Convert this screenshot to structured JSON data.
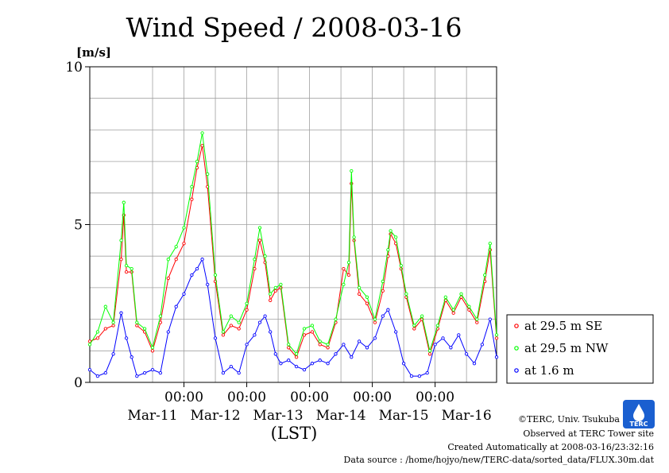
{
  "chart_data": {
    "type": "line",
    "title": "Wind Speed / 2008-03-16",
    "ylabel": "[m/s]",
    "xlabel": "(LST)",
    "ylim": [
      0,
      10
    ],
    "yticks": [
      "0",
      "5",
      "10"
    ],
    "xlim": [
      "2008-03-10 12:00",
      "2008-03-16 23:30"
    ],
    "x_time_ticks": [
      {
        "label": "00:00",
        "x": "2008-03-12 00:00"
      },
      {
        "label": "00:00",
        "x": "2008-03-13 00:00"
      },
      {
        "label": "00:00",
        "x": "2008-03-14 00:00"
      },
      {
        "label": "00:00",
        "x": "2008-03-15 00:00"
      },
      {
        "label": "00:00",
        "x": "2008-03-16 00:00"
      }
    ],
    "x_date_labels": [
      {
        "label": "Mar-11",
        "x": "2008-03-11 12:00"
      },
      {
        "label": "Mar-12",
        "x": "2008-03-12 12:00"
      },
      {
        "label": "Mar-13",
        "x": "2008-03-13 12:00"
      },
      {
        "label": "Mar-14",
        "x": "2008-03-14 12:00"
      },
      {
        "label": "Mar-15",
        "x": "2008-03-15 12:00"
      },
      {
        "label": "Mar-16",
        "x": "2008-03-16 12:00"
      }
    ],
    "grid": true,
    "legend_position": "right",
    "series": [
      {
        "name": "at 29.5 m SE",
        "color": "#ff0000",
        "points": [
          [
            "2008-03-10 12:00",
            1.3
          ],
          [
            "2008-03-10 15:00",
            1.4
          ],
          [
            "2008-03-10 18:00",
            1.7
          ],
          [
            "2008-03-10 21:00",
            1.8
          ],
          [
            "2008-03-11 00:00",
            3.9
          ],
          [
            "2008-03-11 01:00",
            5.3
          ],
          [
            "2008-03-11 02:00",
            3.5
          ],
          [
            "2008-03-11 04:00",
            3.5
          ],
          [
            "2008-03-11 06:00",
            1.8
          ],
          [
            "2008-03-11 09:00",
            1.6
          ],
          [
            "2008-03-11 12:00",
            1.0
          ],
          [
            "2008-03-11 15:00",
            1.9
          ],
          [
            "2008-03-11 18:00",
            3.3
          ],
          [
            "2008-03-11 21:00",
            3.9
          ],
          [
            "2008-03-12 00:00",
            4.4
          ],
          [
            "2008-03-12 03:00",
            5.8
          ],
          [
            "2008-03-12 05:00",
            6.8
          ],
          [
            "2008-03-12 07:00",
            7.5
          ],
          [
            "2008-03-12 09:00",
            6.2
          ],
          [
            "2008-03-12 12:00",
            3.2
          ],
          [
            "2008-03-12 15:00",
            1.5
          ],
          [
            "2008-03-12 18:00",
            1.8
          ],
          [
            "2008-03-12 21:00",
            1.7
          ],
          [
            "2008-03-13 00:00",
            2.3
          ],
          [
            "2008-03-13 03:00",
            3.6
          ],
          [
            "2008-03-13 05:00",
            4.5
          ],
          [
            "2008-03-13 07:00",
            3.8
          ],
          [
            "2008-03-13 09:00",
            2.6
          ],
          [
            "2008-03-13 11:00",
            2.9
          ],
          [
            "2008-03-13 13:00",
            3.0
          ],
          [
            "2008-03-13 16:00",
            1.1
          ],
          [
            "2008-03-13 19:00",
            0.8
          ],
          [
            "2008-03-13 22:00",
            1.5
          ],
          [
            "2008-03-14 01:00",
            1.6
          ],
          [
            "2008-03-14 04:00",
            1.2
          ],
          [
            "2008-03-14 07:00",
            1.1
          ],
          [
            "2008-03-14 10:00",
            1.9
          ],
          [
            "2008-03-14 13:00",
            3.6
          ],
          [
            "2008-03-14 15:00",
            3.4
          ],
          [
            "2008-03-14 16:00",
            6.3
          ],
          [
            "2008-03-14 17:00",
            4.5
          ],
          [
            "2008-03-14 19:00",
            2.8
          ],
          [
            "2008-03-14 22:00",
            2.5
          ],
          [
            "2008-03-15 01:00",
            1.9
          ],
          [
            "2008-03-15 04:00",
            2.9
          ],
          [
            "2008-03-15 06:00",
            4.0
          ],
          [
            "2008-03-15 07:00",
            4.7
          ],
          [
            "2008-03-15 09:00",
            4.4
          ],
          [
            "2008-03-15 11:00",
            3.6
          ],
          [
            "2008-03-15 13:00",
            2.7
          ],
          [
            "2008-03-15 16:00",
            1.7
          ],
          [
            "2008-03-15 19:00",
            2.0
          ],
          [
            "2008-03-15 22:00",
            0.9
          ],
          [
            "2008-03-16 01:00",
            1.7
          ],
          [
            "2008-03-16 04:00",
            2.6
          ],
          [
            "2008-03-16 07:00",
            2.2
          ],
          [
            "2008-03-16 10:00",
            2.7
          ],
          [
            "2008-03-16 13:00",
            2.3
          ],
          [
            "2008-03-16 16:00",
            1.9
          ],
          [
            "2008-03-16 19:00",
            3.2
          ],
          [
            "2008-03-16 21:00",
            4.2
          ],
          [
            "2008-03-16 23:30",
            1.4
          ]
        ]
      },
      {
        "name": "at 29.5 m NW",
        "color": "#00ff00",
        "points": [
          [
            "2008-03-10 12:00",
            1.2
          ],
          [
            "2008-03-10 15:00",
            1.6
          ],
          [
            "2008-03-10 18:00",
            2.4
          ],
          [
            "2008-03-10 21:00",
            1.9
          ],
          [
            "2008-03-11 00:00",
            4.5
          ],
          [
            "2008-03-11 01:00",
            5.7
          ],
          [
            "2008-03-11 02:00",
            3.7
          ],
          [
            "2008-03-11 04:00",
            3.6
          ],
          [
            "2008-03-11 06:00",
            1.9
          ],
          [
            "2008-03-11 09:00",
            1.7
          ],
          [
            "2008-03-11 12:00",
            1.1
          ],
          [
            "2008-03-11 15:00",
            2.1
          ],
          [
            "2008-03-11 18:00",
            3.9
          ],
          [
            "2008-03-11 21:00",
            4.3
          ],
          [
            "2008-03-12 00:00",
            4.9
          ],
          [
            "2008-03-12 03:00",
            6.2
          ],
          [
            "2008-03-12 05:00",
            7.0
          ],
          [
            "2008-03-12 07:00",
            7.9
          ],
          [
            "2008-03-12 09:00",
            6.6
          ],
          [
            "2008-03-12 12:00",
            3.4
          ],
          [
            "2008-03-12 15:00",
            1.6
          ],
          [
            "2008-03-12 18:00",
            2.1
          ],
          [
            "2008-03-12 21:00",
            1.9
          ],
          [
            "2008-03-13 00:00",
            2.5
          ],
          [
            "2008-03-13 03:00",
            3.9
          ],
          [
            "2008-03-13 05:00",
            4.9
          ],
          [
            "2008-03-13 07:00",
            4.0
          ],
          [
            "2008-03-13 09:00",
            2.8
          ],
          [
            "2008-03-13 11:00",
            3.0
          ],
          [
            "2008-03-13 13:00",
            3.1
          ],
          [
            "2008-03-13 16:00",
            1.2
          ],
          [
            "2008-03-13 19:00",
            0.9
          ],
          [
            "2008-03-13 22:00",
            1.7
          ],
          [
            "2008-03-14 01:00",
            1.8
          ],
          [
            "2008-03-14 04:00",
            1.3
          ],
          [
            "2008-03-14 07:00",
            1.2
          ],
          [
            "2008-03-14 10:00",
            2.0
          ],
          [
            "2008-03-14 13:00",
            3.1
          ],
          [
            "2008-03-14 15:00",
            3.8
          ],
          [
            "2008-03-14 16:00",
            6.7
          ],
          [
            "2008-03-14 17:00",
            4.6
          ],
          [
            "2008-03-14 19:00",
            3.0
          ],
          [
            "2008-03-14 22:00",
            2.7
          ],
          [
            "2008-03-15 01:00",
            2.0
          ],
          [
            "2008-03-15 04:00",
            3.2
          ],
          [
            "2008-03-15 06:00",
            4.2
          ],
          [
            "2008-03-15 07:00",
            4.8
          ],
          [
            "2008-03-15 09:00",
            4.6
          ],
          [
            "2008-03-15 11:00",
            3.7
          ],
          [
            "2008-03-15 13:00",
            2.8
          ],
          [
            "2008-03-15 16:00",
            1.8
          ],
          [
            "2008-03-15 19:00",
            2.1
          ],
          [
            "2008-03-15 22:00",
            1.0
          ],
          [
            "2008-03-16 01:00",
            1.8
          ],
          [
            "2008-03-16 04:00",
            2.7
          ],
          [
            "2008-03-16 07:00",
            2.3
          ],
          [
            "2008-03-16 10:00",
            2.8
          ],
          [
            "2008-03-16 13:00",
            2.4
          ],
          [
            "2008-03-16 16:00",
            2.0
          ],
          [
            "2008-03-16 19:00",
            3.4
          ],
          [
            "2008-03-16 21:00",
            4.4
          ],
          [
            "2008-03-16 23:30",
            1.5
          ]
        ]
      },
      {
        "name": "at 1.6 m",
        "color": "#0000ff",
        "points": [
          [
            "2008-03-10 12:00",
            0.4
          ],
          [
            "2008-03-10 15:00",
            0.2
          ],
          [
            "2008-03-10 18:00",
            0.3
          ],
          [
            "2008-03-10 21:00",
            0.9
          ],
          [
            "2008-03-11 00:00",
            2.2
          ],
          [
            "2008-03-11 02:00",
            1.4
          ],
          [
            "2008-03-11 04:00",
            0.8
          ],
          [
            "2008-03-11 06:00",
            0.2
          ],
          [
            "2008-03-11 09:00",
            0.3
          ],
          [
            "2008-03-11 12:00",
            0.4
          ],
          [
            "2008-03-11 15:00",
            0.3
          ],
          [
            "2008-03-11 18:00",
            1.6
          ],
          [
            "2008-03-11 21:00",
            2.4
          ],
          [
            "2008-03-12 00:00",
            2.8
          ],
          [
            "2008-03-12 03:00",
            3.4
          ],
          [
            "2008-03-12 05:00",
            3.6
          ],
          [
            "2008-03-12 07:00",
            3.9
          ],
          [
            "2008-03-12 09:00",
            3.1
          ],
          [
            "2008-03-12 12:00",
            1.4
          ],
          [
            "2008-03-12 15:00",
            0.3
          ],
          [
            "2008-03-12 18:00",
            0.5
          ],
          [
            "2008-03-12 21:00",
            0.3
          ],
          [
            "2008-03-13 00:00",
            1.2
          ],
          [
            "2008-03-13 03:00",
            1.5
          ],
          [
            "2008-03-13 05:00",
            1.9
          ],
          [
            "2008-03-13 07:00",
            2.1
          ],
          [
            "2008-03-13 09:00",
            1.6
          ],
          [
            "2008-03-13 11:00",
            0.9
          ],
          [
            "2008-03-13 13:00",
            0.6
          ],
          [
            "2008-03-13 16:00",
            0.7
          ],
          [
            "2008-03-13 19:00",
            0.5
          ],
          [
            "2008-03-13 22:00",
            0.4
          ],
          [
            "2008-03-14 01:00",
            0.6
          ],
          [
            "2008-03-14 04:00",
            0.7
          ],
          [
            "2008-03-14 07:00",
            0.6
          ],
          [
            "2008-03-14 10:00",
            0.9
          ],
          [
            "2008-03-14 13:00",
            1.2
          ],
          [
            "2008-03-14 16:00",
            0.8
          ],
          [
            "2008-03-14 19:00",
            1.3
          ],
          [
            "2008-03-14 22:00",
            1.1
          ],
          [
            "2008-03-15 01:00",
            1.4
          ],
          [
            "2008-03-15 04:00",
            2.1
          ],
          [
            "2008-03-15 06:00",
            2.3
          ],
          [
            "2008-03-15 09:00",
            1.6
          ],
          [
            "2008-03-15 12:00",
            0.6
          ],
          [
            "2008-03-15 15:00",
            0.2
          ],
          [
            "2008-03-15 18:00",
            0.2
          ],
          [
            "2008-03-15 21:00",
            0.3
          ],
          [
            "2008-03-16 00:00",
            1.2
          ],
          [
            "2008-03-16 03:00",
            1.4
          ],
          [
            "2008-03-16 06:00",
            1.1
          ],
          [
            "2008-03-16 09:00",
            1.5
          ],
          [
            "2008-03-16 12:00",
            0.9
          ],
          [
            "2008-03-16 15:00",
            0.6
          ],
          [
            "2008-03-16 18:00",
            1.2
          ],
          [
            "2008-03-16 21:00",
            2.0
          ],
          [
            "2008-03-16 23:30",
            0.8
          ]
        ]
      }
    ]
  },
  "footer": {
    "copyright": "©TERC, Univ. Tsukuba",
    "observed": "Observed at TERC Tower site",
    "created": "Created Automatically at 2008-03-16/23:32:16",
    "source": "Data source : /home/hojyo/new/TERC-data/sorted_data/FLUX.30m.dat"
  },
  "logo": {
    "text": "TERC",
    "color": "#1a5fd0"
  }
}
